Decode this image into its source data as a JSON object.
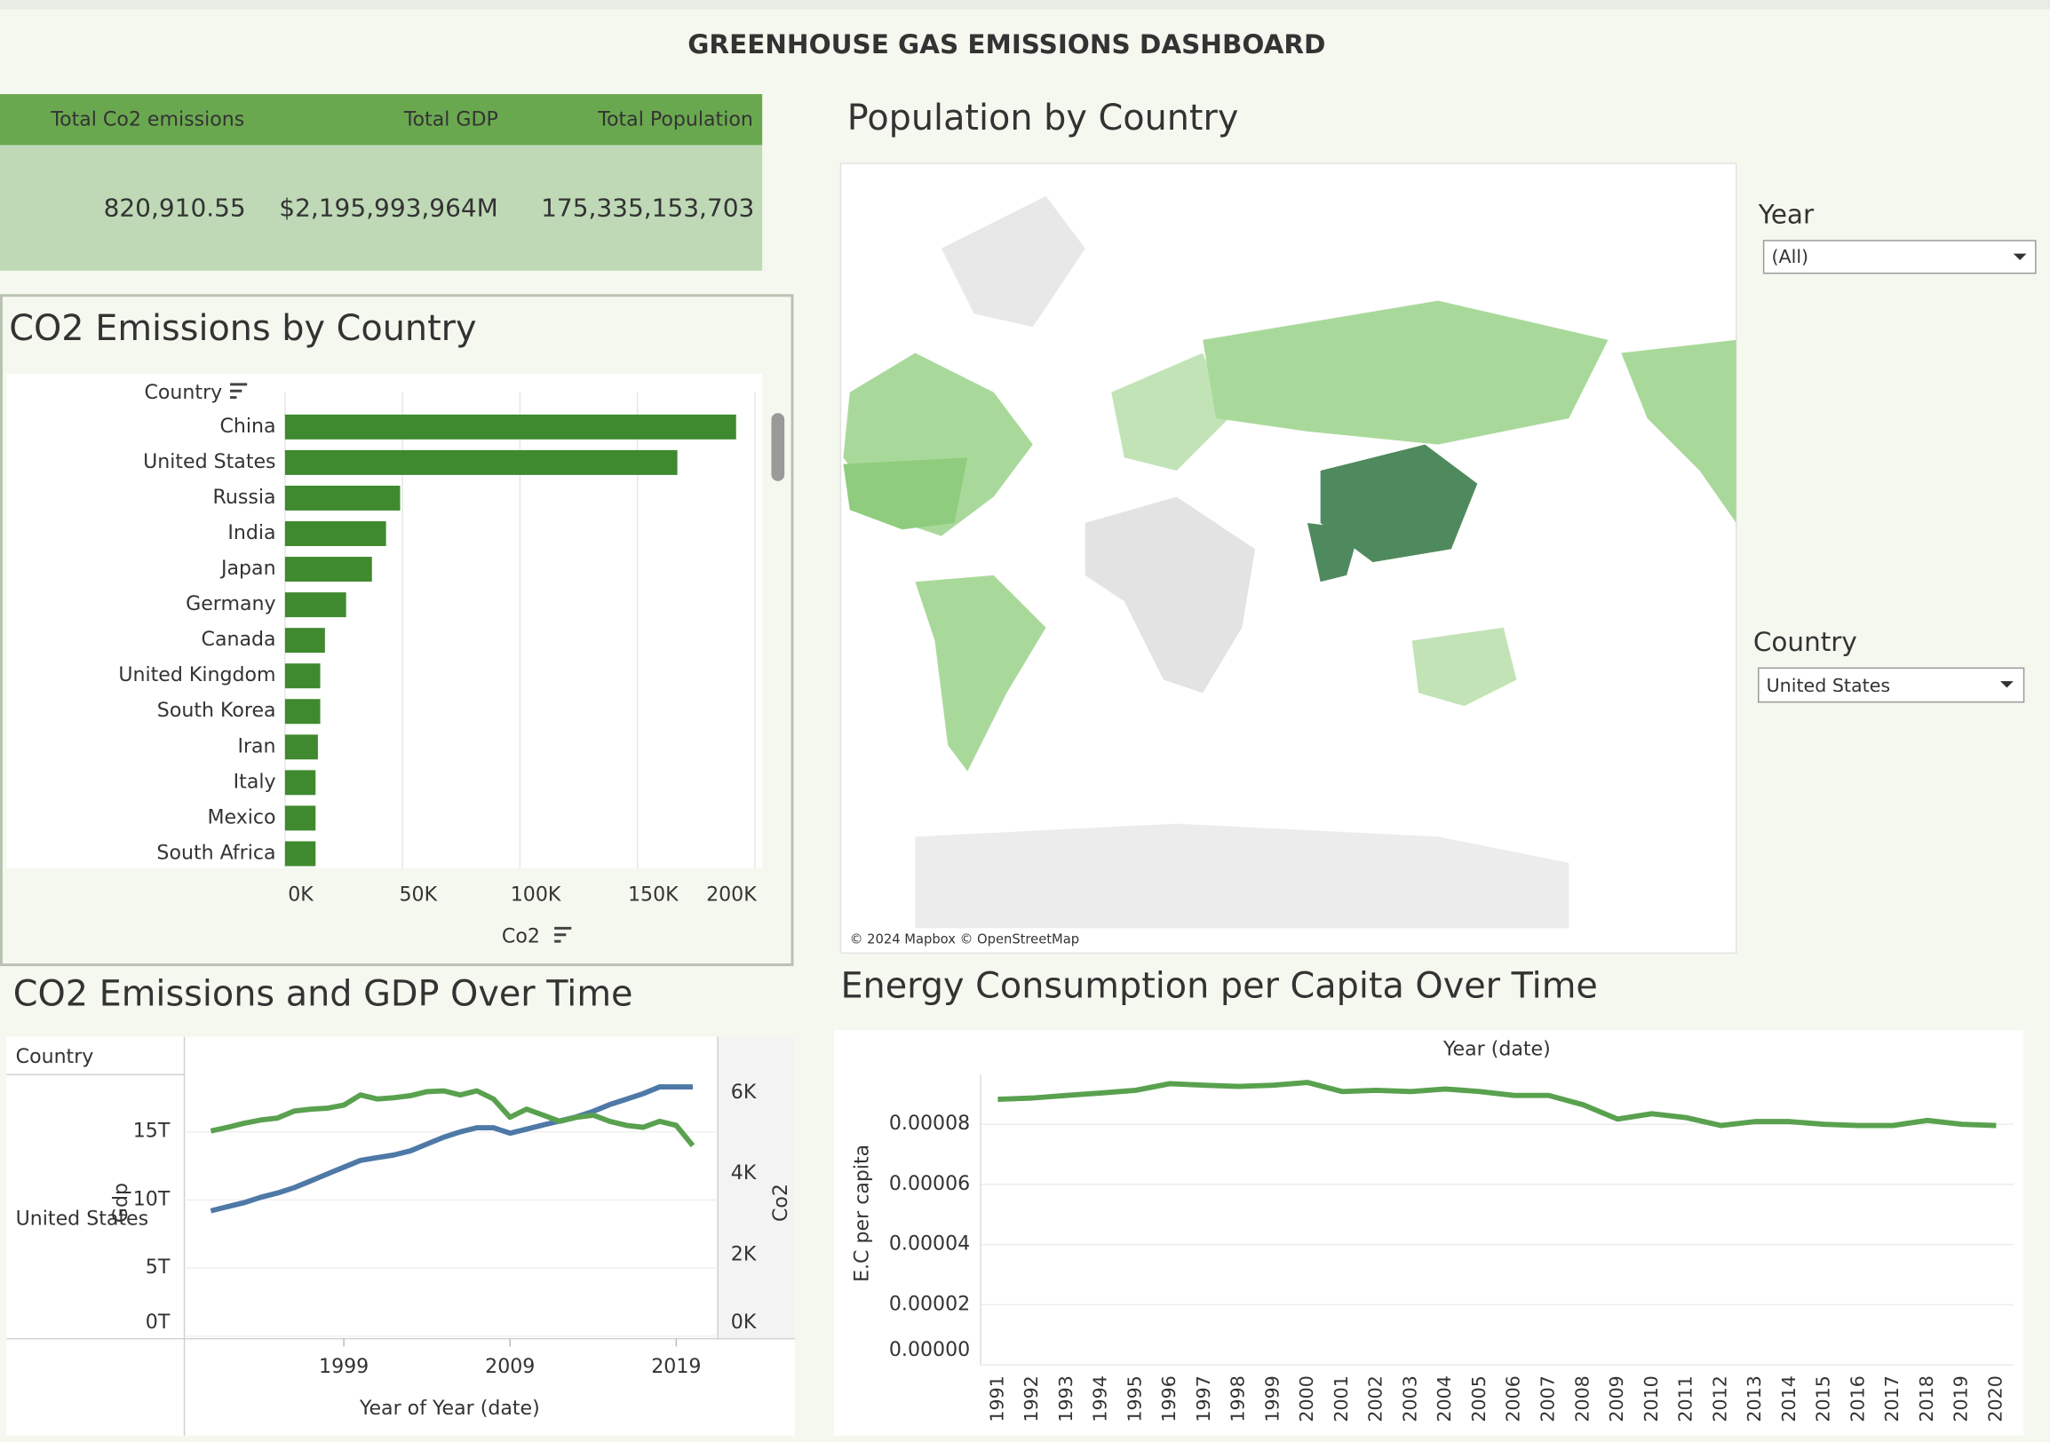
{
  "dashboard": {
    "title": "GREENHOUSE GAS EMISSIONS DASHBOARD",
    "kpis": [
      {
        "label": "Total Co2 emissions",
        "value": "820,910.55"
      },
      {
        "label": "Total GDP",
        "value": "$2,195,993,964M"
      },
      {
        "label": "Total Population",
        "value": "175,335,153,703"
      }
    ],
    "filters": [
      {
        "label": "Year",
        "value": "(All)"
      },
      {
        "label": "Country",
        "value": "United States"
      }
    ]
  },
  "chart_data": [
    {
      "type": "bar",
      "orientation": "horizontal",
      "title": "CO2 Emissions by Country",
      "y_label": "Country",
      "x_label": "Co2",
      "categories": [
        "China",
        "United States",
        "Russia",
        "India",
        "Japan",
        "Germany",
        "Canada",
        "United Kingdom",
        "South Korea",
        "Iran",
        "Italy",
        "Mexico",
        "South Africa"
      ],
      "values": [
        192000,
        167000,
        49000,
        43000,
        37000,
        26000,
        17000,
        15000,
        15000,
        14000,
        13000,
        13000,
        13000
      ],
      "color": "#3f8a2e",
      "xlim": [
        0,
        202000
      ],
      "xticks": [
        {
          "value": 0,
          "label": "0K"
        },
        {
          "value": 50000,
          "label": "50K"
        },
        {
          "value": 100000,
          "label": "100K"
        },
        {
          "value": 150000,
          "label": "150K"
        },
        {
          "value": 200000,
          "label": "200K"
        }
      ],
      "grid": true
    },
    {
      "type": "map",
      "title": "Population by Country",
      "attribution": "© 2024 Mapbox © OpenStreetMap"
    },
    {
      "type": "combo",
      "title": "CO2 Emissions and GDP Over Time",
      "row_header": "Country",
      "row_label": "United States",
      "x_label": "Year of Year (date)",
      "x": [
        1991,
        1992,
        1993,
        1994,
        1995,
        1996,
        1997,
        1998,
        1999,
        2000,
        2001,
        2002,
        2003,
        2004,
        2005,
        2006,
        2007,
        2008,
        2009,
        2010,
        2011,
        2012,
        2013,
        2014,
        2015,
        2016,
        2017,
        2018,
        2019,
        2020
      ],
      "xlim": [
        1989.4,
        2021.5
      ],
      "xticks": [
        1999,
        2009,
        2019
      ],
      "ylim": [
        0,
        19200000000000
      ],
      "yticks": [
        {
          "value": 0,
          "label": "0T"
        },
        {
          "value": 5000000000000,
          "label": "5T"
        },
        {
          "value": 10000000000000,
          "label": "10T"
        },
        {
          "value": 15000000000000,
          "label": "15T"
        }
      ],
      "y2lim": [
        0,
        6450
      ],
      "y2ticks": [
        {
          "value": 0,
          "label": "0K"
        },
        {
          "value": 2000,
          "label": "2K"
        },
        {
          "value": 4000,
          "label": "4K"
        },
        {
          "value": 6000,
          "label": "6K"
        }
      ],
      "series": [
        {
          "name": "Gdp",
          "color": "#4e79a7",
          "values": [
            9200000000000.0,
            9500000000000.0,
            9800000000000.0,
            10200000000000.0,
            10500000000000.0,
            10900000000000.0,
            11400000000000.0,
            11900000000000.0,
            12400000000000.0,
            12900000000000.0,
            13100000000000.0,
            13300000000000.0,
            13600000000000.0,
            14100000000000.0,
            14600000000000.0,
            15000000000000.0,
            15300000000000.0,
            15300000000000.0,
            14900000000000.0,
            15200000000000.0,
            15500000000000.0,
            15800000000000.0,
            16100000000000.0,
            16500000000000.0,
            17000000000000.0,
            17400000000000.0,
            17800000000000.0,
            18300000000000.0,
            18300000000000.0,
            18300000000000.0
          ]
        },
        {
          "name": "Co2",
          "color": "#59a14f",
          "axis": "y2",
          "values": [
            5060,
            5150,
            5250,
            5330,
            5380,
            5550,
            5600,
            5620,
            5700,
            5950,
            5850,
            5880,
            5930,
            6030,
            6050,
            5950,
            6050,
            5850,
            5400,
            5600,
            5450,
            5300,
            5400,
            5450,
            5300,
            5200,
            5150,
            5300,
            5200,
            4700
          ]
        }
      ]
    },
    {
      "type": "line",
      "title": "Energy Consumption per Capita Over Time",
      "x_label": "Year (date)",
      "y_label": "E.C per capita",
      "categories": [
        "1991",
        "1992",
        "1993",
        "1994",
        "1995",
        "1996",
        "1997",
        "1998",
        "1999",
        "2000",
        "2001",
        "2002",
        "2003",
        "2004",
        "2005",
        "2006",
        "2007",
        "2008",
        "2009",
        "2010",
        "2011",
        "2012",
        "2013",
        "2014",
        "2015",
        "2016",
        "2017",
        "2018",
        "2019",
        "2020"
      ],
      "values": [
        8.83e-05,
        8.87e-05,
        8.96e-05,
        9.04e-05,
        9.13e-05,
        9.35e-05,
        9.3e-05,
        9.26e-05,
        9.3e-05,
        9.39e-05,
        9.09e-05,
        9.13e-05,
        9.09e-05,
        9.17e-05,
        9.09e-05,
        8.96e-05,
        8.96e-05,
        8.65e-05,
        8.17e-05,
        8.35e-05,
        8.22e-05,
        7.96e-05,
        8.09e-05,
        8.09e-05,
        8e-05,
        7.96e-05,
        7.96e-05,
        8.13e-05,
        8e-05,
        7.96e-05
      ],
      "color": "#59a14f",
      "ylim": [
        0,
        9.65e-05
      ],
      "yticks": [
        {
          "value": 0,
          "label": "0.00000"
        },
        2e-05,
        4e-05,
        6e-05,
        8e-05
      ],
      "grid": true
    }
  ]
}
